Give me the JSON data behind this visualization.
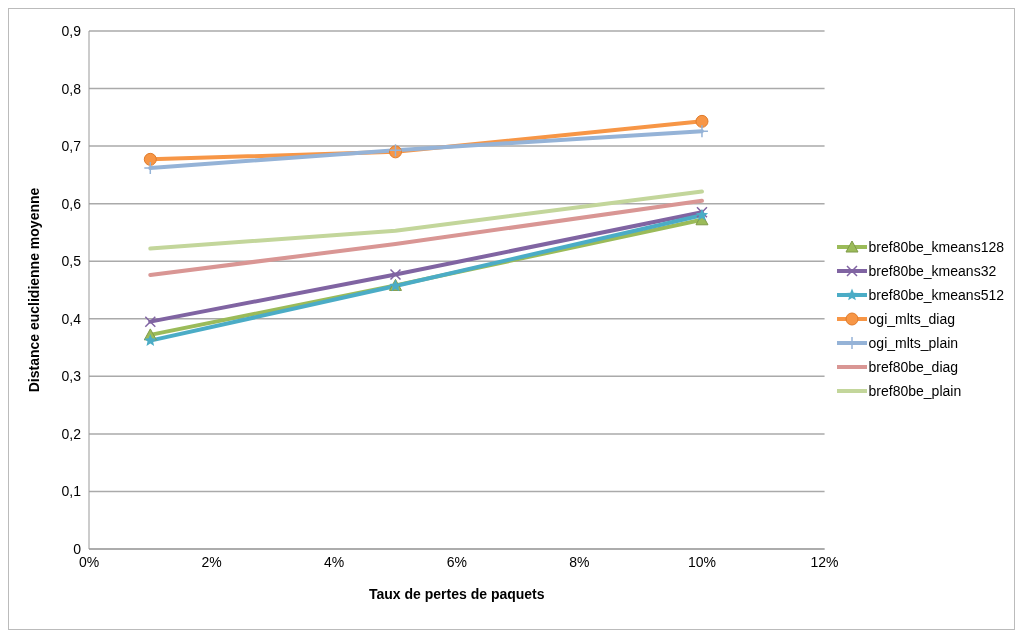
{
  "chart_data": {
    "type": "line",
    "xlabel": "Taux de pertes de paquets",
    "ylabel": "Distance euclidienne moyenne",
    "x": [
      1,
      5,
      10
    ],
    "series": [
      {
        "name": "bref80be_kmeans128",
        "color": "#9bbb59",
        "marker": "triangle",
        "values": [
          0.372,
          0.458,
          0.572
        ]
      },
      {
        "name": "bref80be_kmeans32",
        "color": "#8064a2",
        "marker": "cross",
        "values": [
          0.395,
          0.477,
          0.585
        ]
      },
      {
        "name": "bref80be_kmeans512",
        "color": "#4bacc6",
        "marker": "star",
        "values": [
          0.362,
          0.457,
          0.58
        ]
      },
      {
        "name": "ogi_mlts_diag",
        "color": "#f79646",
        "marker": "circle",
        "values": [
          0.677,
          0.69,
          0.743
        ]
      },
      {
        "name": "ogi_mlts_plain",
        "color": "#95b3d7",
        "marker": "plus",
        "values": [
          0.662,
          0.693,
          0.726
        ]
      },
      {
        "name": "bref80be_diag",
        "color": "#d99694",
        "marker": "none",
        "values": [
          0.476,
          0.53,
          0.605
        ]
      },
      {
        "name": "bref80be_plain",
        "color": "#c3d69b",
        "marker": "none",
        "values": [
          0.522,
          0.553,
          0.621
        ]
      }
    ],
    "xlim": [
      0,
      12
    ],
    "xticks": [
      {
        "value": 0,
        "label": "0%"
      },
      {
        "value": 2,
        "label": "2%"
      },
      {
        "value": 4,
        "label": "4%"
      },
      {
        "value": 6,
        "label": "6%"
      },
      {
        "value": 8,
        "label": "8%"
      },
      {
        "value": 10,
        "label": "10%"
      },
      {
        "value": 12,
        "label": "12%"
      }
    ],
    "ylim": [
      0,
      0.9
    ],
    "yticks": [
      {
        "value": 0,
        "label": "0"
      },
      {
        "value": 0.1,
        "label": "0,1"
      },
      {
        "value": 0.2,
        "label": "0,2"
      },
      {
        "value": 0.3,
        "label": "0,3"
      },
      {
        "value": 0.4,
        "label": "0,4"
      },
      {
        "value": 0.5,
        "label": "0,5"
      },
      {
        "value": 0.6,
        "label": "0,6"
      },
      {
        "value": 0.7,
        "label": "0,7"
      },
      {
        "value": 0.8,
        "label": "0,8"
      },
      {
        "value": 0.9,
        "label": "0,9"
      }
    ],
    "grid": "y",
    "legend": "right",
    "line_style": "solid"
  }
}
